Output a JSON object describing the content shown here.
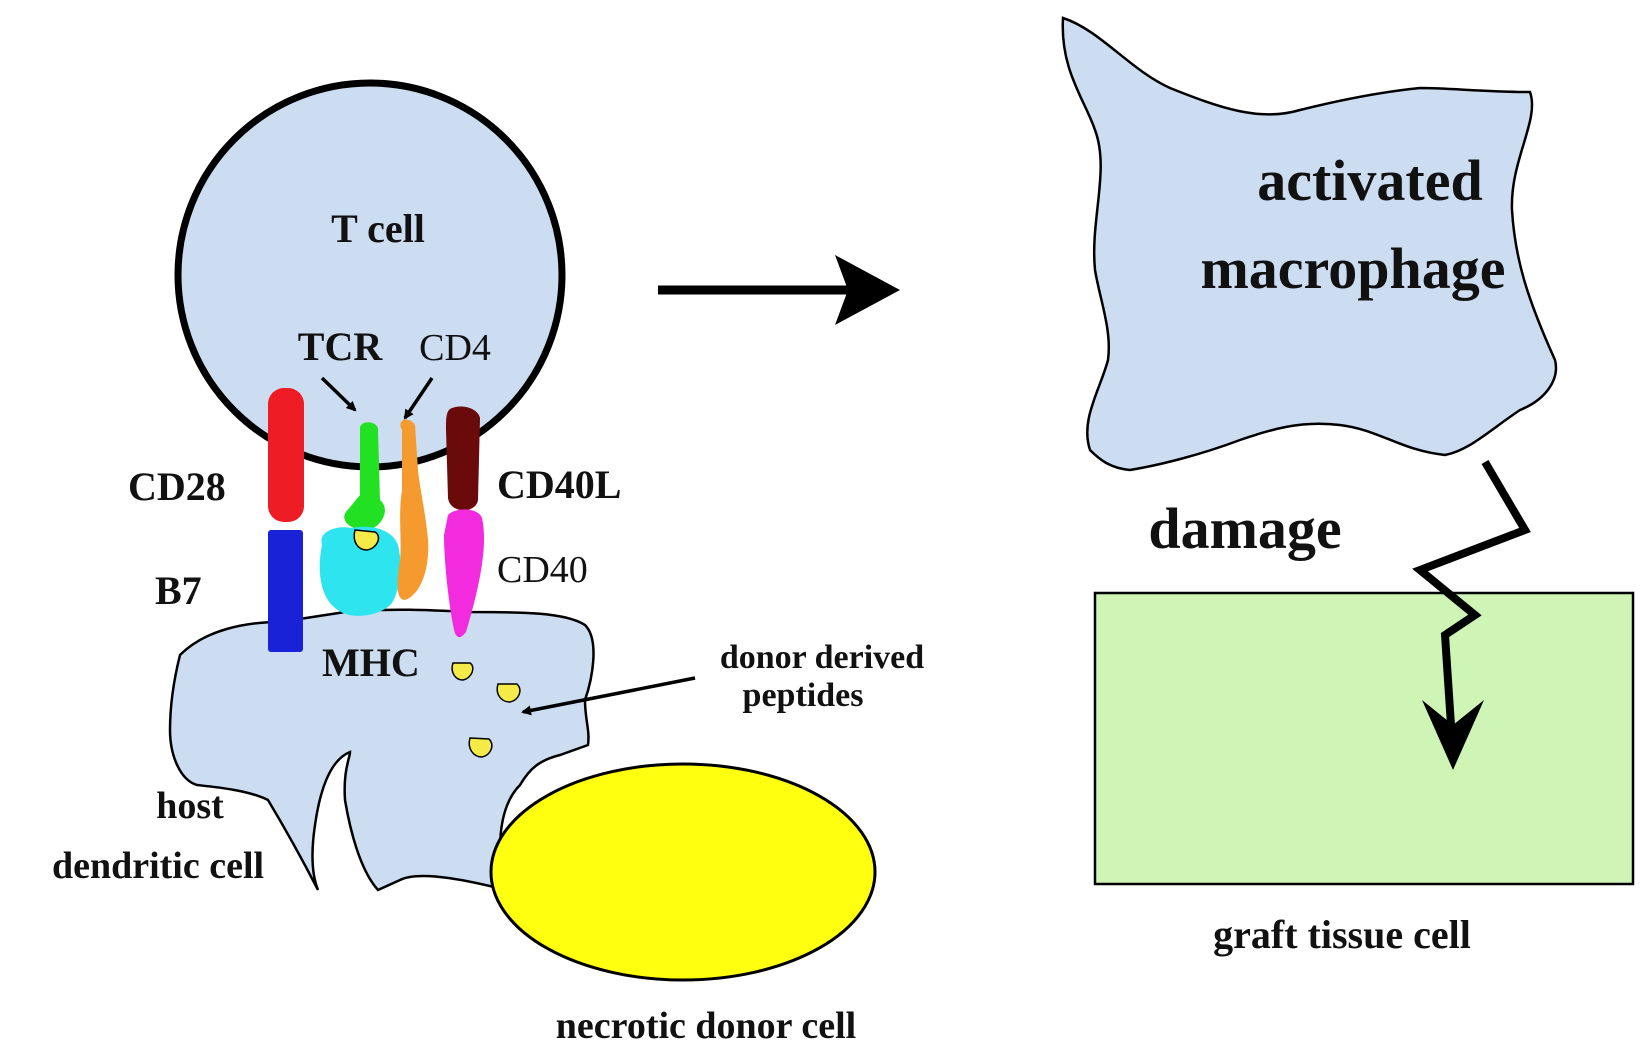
{
  "labels": {
    "t_cell": "T cell",
    "tcr": "TCR",
    "cd4": "CD4",
    "cd28": "CD28",
    "cd40l": "CD40L",
    "b7": "B7",
    "cd40": "CD40",
    "mhc": "MHC",
    "donor_derived_line1": "donor derived",
    "donor_derived_line2": "peptides",
    "host_line1": "host",
    "host_line2": "dendritic cell",
    "necrotic_donor_cell": "necrotic donor cell",
    "activated": "activated",
    "macrophage": "macrophage",
    "damage": "damage",
    "graft_tissue_cell": "graft tissue cell"
  },
  "colors": {
    "cell_fill": "#cdddf1",
    "necrotic_fill": "#ffff10",
    "graft_fill": "#cff5b6",
    "cd28": "#ee1c24",
    "b7": "#1a22d8",
    "tcr": "#22e022",
    "mhc": "#2ee4ee",
    "cd4": "#f59a2e",
    "cd40l": "#6b0a0a",
    "cd40": "#f22bde",
    "peptide": "#f4ea48"
  }
}
